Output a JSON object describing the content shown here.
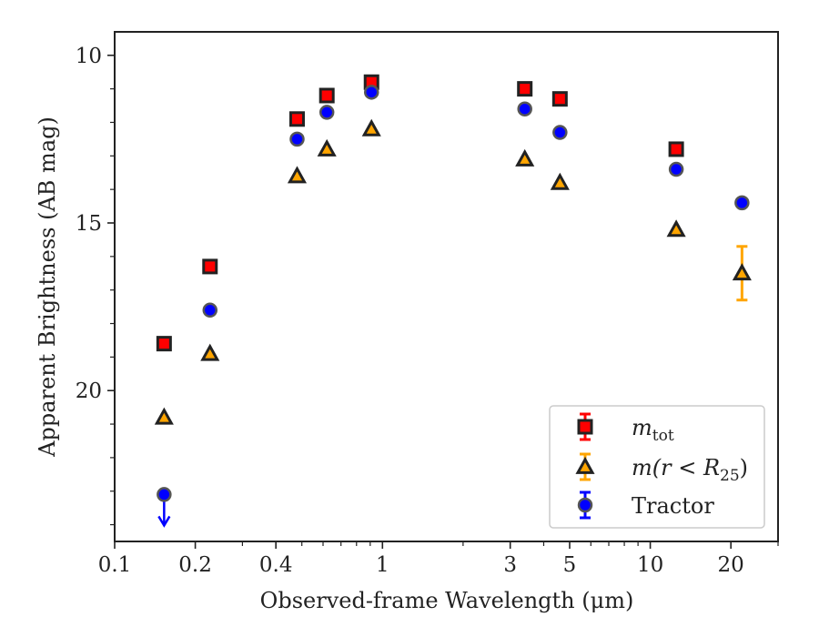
{
  "chart_data": {
    "type": "scatter",
    "xlabel": "Observed-frame Wavelength (μm)",
    "ylabel": "Apparent Brightness (AB mag)",
    "x_scale": "log",
    "xlim": [
      0.1,
      30
    ],
    "ylim": [
      24.5,
      9.3
    ],
    "y_inverted": true,
    "x_ticks": [
      0.1,
      0.2,
      0.4,
      1,
      3,
      5,
      10,
      20
    ],
    "x_tick_labels": [
      "0.1",
      "0.2",
      "0.4",
      "1",
      "3",
      "5",
      "10",
      "20"
    ],
    "y_ticks": [
      10,
      15,
      20
    ],
    "y_tick_labels": [
      "10",
      "15",
      "20"
    ],
    "grid": false,
    "legend_position": "lower right",
    "series": [
      {
        "name": "m_tot",
        "marker": "square",
        "color": "#ff0000",
        "x": [
          0.153,
          0.227,
          0.48,
          0.62,
          0.91,
          3.4,
          4.6,
          12.5
        ],
        "y": [
          18.6,
          16.3,
          11.9,
          11.2,
          10.8,
          11.0,
          11.3,
          12.8
        ]
      },
      {
        "name": "m(r < R_25)",
        "marker": "triangle",
        "color": "#ffa500",
        "x": [
          0.153,
          0.227,
          0.48,
          0.62,
          0.91,
          3.4,
          4.6,
          12.5,
          22.0
        ],
        "y": [
          20.8,
          18.9,
          13.6,
          12.8,
          12.2,
          13.1,
          13.8,
          15.2,
          16.5
        ],
        "yerr": [
          0,
          0,
          0,
          0,
          0,
          0,
          0,
          0,
          0.8
        ]
      },
      {
        "name": "Tractor",
        "marker": "circle",
        "color": "#0000ff",
        "x": [
          0.153,
          0.227,
          0.48,
          0.62,
          0.91,
          3.4,
          4.6,
          12.5,
          22.0
        ],
        "y": [
          23.1,
          17.6,
          12.5,
          11.7,
          11.1,
          11.6,
          12.3,
          13.4,
          14.4
        ],
        "upper_limit": [
          true,
          false,
          false,
          false,
          false,
          false,
          false,
          false,
          false
        ]
      }
    ],
    "legend": [
      {
        "label_main": "m",
        "label_sub": "tot",
        "series": 0
      },
      {
        "label_main": "m(r < R",
        "label_sub": "25",
        "label_tail": ")",
        "series": 1
      },
      {
        "label_main": "Tractor",
        "series": 2
      }
    ]
  }
}
